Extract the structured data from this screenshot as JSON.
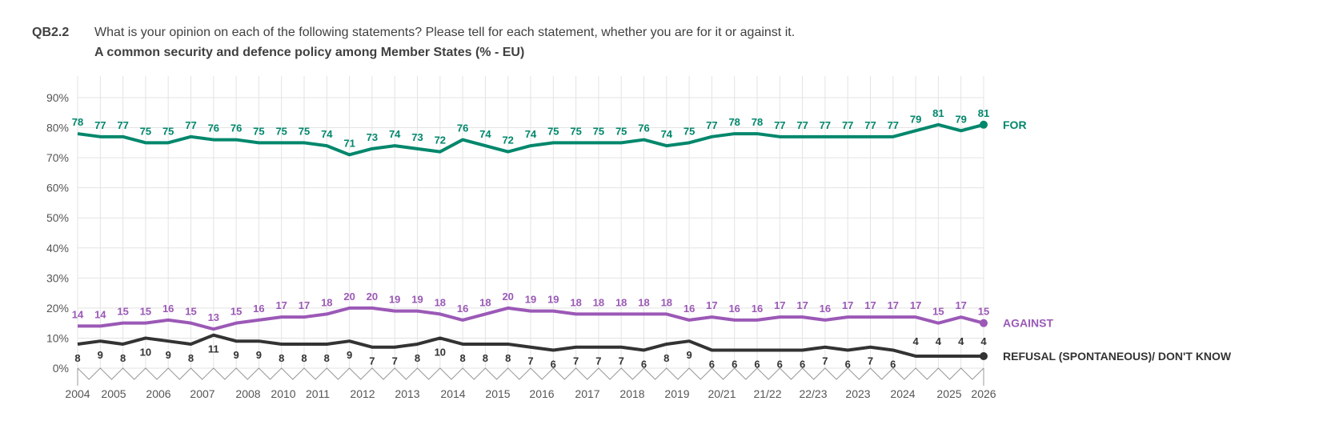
{
  "header": {
    "code": "QB2.2",
    "question": "What is your opinion on each of the following statements? Please tell for each statement, whether you are for it or against it.",
    "subtitle": "A common security and defence policy among Member States (% - EU)"
  },
  "chart_data": {
    "type": "line",
    "ylim": [
      0,
      90
    ],
    "yticks": [
      "0%",
      "10%",
      "20%",
      "30%",
      "40%",
      "50%",
      "60%",
      "70%",
      "80%",
      "90%"
    ],
    "grid": true,
    "legend": "right",
    "year_labels_bottom": [
      "2004",
      "2006",
      "2007",
      "2008",
      "2010",
      "2011",
      "2012",
      "2013",
      "2014",
      "2015",
      "2016",
      "2017",
      "2018",
      "2019",
      "20/21",
      "21/22",
      "22/23",
      "2023",
      "2024",
      "2025",
      "2026"
    ],
    "year_labels_top": [
      "2005",
      "2006",
      "2007",
      "2008",
      "2010",
      "2011",
      "2012",
      "2013",
      "2014",
      "2015",
      "2016",
      "2017",
      "2018",
      "2019",
      "20/21",
      "21/22",
      "22/23",
      "2023",
      "2024",
      "2025"
    ],
    "series": [
      {
        "name": "FOR",
        "color": "#00876c",
        "values": [
          78,
          77,
          77,
          75,
          75,
          77,
          76,
          76,
          75,
          75,
          75,
          74,
          71,
          73,
          74,
          73,
          72,
          76,
          74,
          72,
          74,
          75,
          75,
          75,
          75,
          76,
          74,
          75,
          77,
          78,
          78,
          77,
          77,
          77,
          77,
          77,
          77,
          79,
          81,
          79,
          81
        ]
      },
      {
        "name": "AGAINST",
        "color": "#9b59b6",
        "values": [
          14,
          14,
          15,
          15,
          16,
          15,
          13,
          15,
          16,
          17,
          17,
          18,
          20,
          20,
          19,
          19,
          18,
          16,
          18,
          20,
          19,
          19,
          18,
          18,
          18,
          18,
          18,
          16,
          17,
          16,
          16,
          17,
          17,
          16,
          17,
          17,
          17,
          17,
          15,
          17,
          15
        ]
      },
      {
        "name": "REFUSAL (SPONTANEOUS)/ DON'T KNOW",
        "color": "#333333",
        "values": [
          8,
          9,
          8,
          10,
          9,
          8,
          11,
          9,
          9,
          8,
          8,
          8,
          9,
          7,
          7,
          8,
          10,
          8,
          8,
          8,
          7,
          6,
          7,
          7,
          7,
          6,
          8,
          9,
          6,
          6,
          6,
          6,
          6,
          7,
          6,
          7,
          6,
          4,
          4,
          4,
          4
        ]
      }
    ]
  }
}
